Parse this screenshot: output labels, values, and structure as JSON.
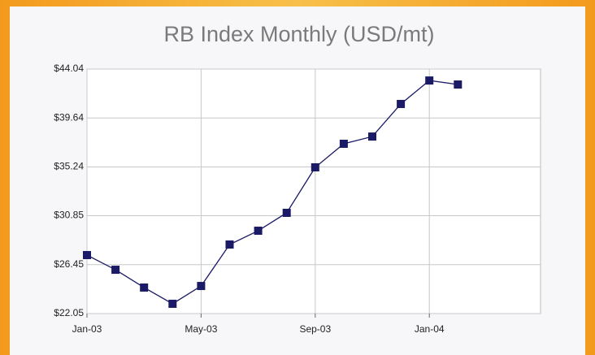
{
  "chart_data": {
    "type": "line",
    "title": "RB Index Monthly (USD/mt)",
    "categories": [
      "Jan-03",
      null,
      null,
      null,
      "May-03",
      null,
      null,
      null,
      "Sep-03",
      null,
      null,
      null,
      "Jan-04",
      null
    ],
    "series": [
      {
        "name": "RB Index",
        "color": "#1a1a66",
        "values": [
          27.31,
          25.99,
          24.39,
          22.93,
          24.53,
          28.26,
          29.5,
          31.11,
          35.2,
          37.32,
          37.97,
          40.9,
          43.01,
          42.65
        ]
      }
    ],
    "ylim": [
      22.05,
      44.04
    ],
    "yticks": [
      {
        "value": 22.05,
        "label": "$22.05"
      },
      {
        "value": 26.45,
        "label": "$26.45"
      },
      {
        "value": 30.85,
        "label": "$30.85"
      },
      {
        "value": 35.24,
        "label": "$35.24"
      },
      {
        "value": 39.64,
        "label": "$39.64"
      },
      {
        "value": 44.04,
        "label": "$44.04"
      }
    ],
    "grid": true
  }
}
